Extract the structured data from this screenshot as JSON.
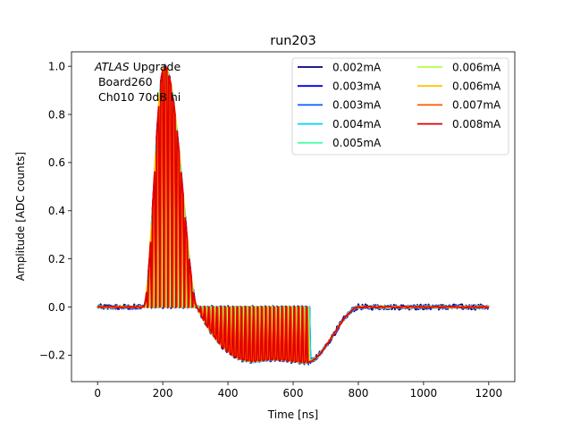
{
  "chart_data": {
    "type": "line",
    "title": "run203",
    "xlabel": "Time [ns]",
    "ylabel": "Amplitude [ADC counts]",
    "xlim": [
      -80,
      1280
    ],
    "ylim": [
      -0.31,
      1.06
    ],
    "xticks": [
      0,
      200,
      400,
      600,
      800,
      1000,
      1200
    ],
    "xtick_labels": [
      "0",
      "200",
      "400",
      "600",
      "800",
      "1000",
      "1200"
    ],
    "yticks": [
      -0.2,
      0.0,
      0.2,
      0.4,
      0.6,
      0.8,
      1.0
    ],
    "ytick_labels": [
      "−0.2",
      "0.0",
      "0.2",
      "0.4",
      "0.6",
      "0.8",
      "1.0"
    ],
    "grid": false,
    "legend_position": "top-right",
    "legend_columns": 2,
    "annotation": {
      "line1_italic": "ATLAS",
      "line1_rest": " Upgrade",
      "line2": " Board260",
      "line3": " Ch010 70dB hi"
    },
    "pulse_shape": {
      "baseline": 0.0,
      "rise_start": 140,
      "peak_time": 205,
      "peak_value": 1.0,
      "zero_crossing": 305,
      "undershoot_min": -0.225,
      "undershoot_min_time": 480,
      "undershoot_end": 650,
      "recovery_end": 800,
      "t_start": 0,
      "t_end": 1200,
      "sample_spacing_ns": 3.125,
      "bar_spacing_ns": 12.5,
      "bar_region": [
        140,
        650
      ]
    },
    "series": [
      {
        "name": "0.002mA",
        "color": "#00007f",
        "noise": 0.012,
        "shift": 0
      },
      {
        "name": "0.003mA",
        "color": "#0000e0",
        "noise": 0.009,
        "shift": 1
      },
      {
        "name": "0.003mA",
        "color": "#0060ff",
        "noise": 0.008,
        "shift": 2
      },
      {
        "name": "0.004mA",
        "color": "#00d4ff",
        "noise": 0.006,
        "shift": 3
      },
      {
        "name": "0.005mA",
        "color": "#4dffa9",
        "noise": 0.005,
        "shift": 4
      },
      {
        "name": "0.006mA",
        "color": "#b0ff46",
        "noise": 0.004,
        "shift": 5
      },
      {
        "name": "0.006mA",
        "color": "#ffc400",
        "noise": 0.004,
        "shift": 6
      },
      {
        "name": "0.007mA",
        "color": "#ff5700",
        "noise": 0.003,
        "shift": 7
      },
      {
        "name": "0.008mA",
        "color": "#e00000",
        "noise": 0.003,
        "shift": 8
      }
    ]
  }
}
